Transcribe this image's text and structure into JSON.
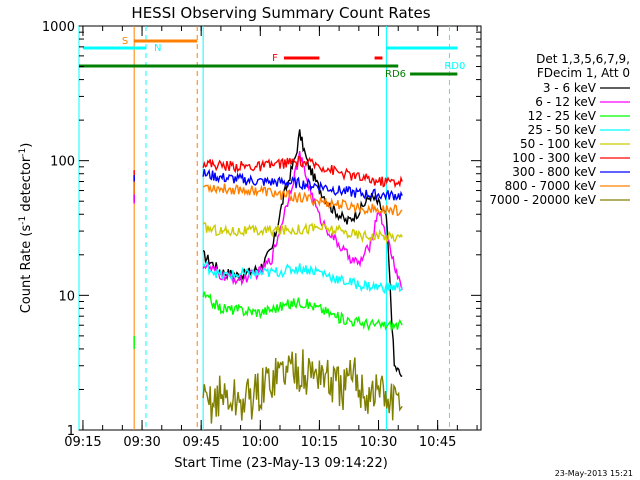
{
  "chart_data": {
    "type": "line",
    "title": "HESSI Observing Summary Count Rates",
    "xlabel": "Start Time (23-May-13 09:14:22)",
    "ylabel": "Count Rate (s⁻¹ detector⁻¹)",
    "ylabel_main": "Count Rate (s",
    "ylabel_mid": " detector",
    "ylabel_end": ")",
    "ylabel_sup": "-1",
    "y_scale": "log",
    "ylim": [
      1,
      1000
    ],
    "xlim": [
      "09:14",
      "10:56"
    ],
    "x_ticks": [
      "09:15",
      "09:30",
      "09:45",
      "10:00",
      "10:15",
      "10:30",
      "10:45"
    ],
    "y_ticks": [
      "1",
      "10",
      "100",
      "1000"
    ],
    "legend_title_1": "Det 1,3,5,6,7,9,",
    "legend_title_2": "FDecim 1, Att 0",
    "legend_position": "right",
    "footer_date": "23-May-2013 15:21",
    "series": [
      {
        "name": "3 - 6 keV",
        "color": "#000000",
        "x": [
          "09:28",
          "09:45:30",
          "09:50",
          "09:55",
          "10:00",
          "10:03",
          "10:06",
          "10:09",
          "10:10",
          "10:12",
          "10:15",
          "10:18",
          "10:22",
          "10:25",
          "10:28",
          "10:30",
          "10:32",
          "10:34",
          "10:36"
        ],
        "values": [
          62,
          20,
          15,
          14,
          16,
          22,
          55,
          110,
          160,
          95,
          62,
          45,
          35,
          42,
          55,
          48,
          38,
          3,
          2.5
        ]
      },
      {
        "name": "6 - 12 keV",
        "color": "#ff00ff",
        "x": [
          "09:28",
          "09:45:30",
          "09:50",
          "09:55",
          "10:00",
          "10:03",
          "10:06",
          "10:09",
          "10:10",
          "10:12",
          "10:15",
          "10:18",
          "10:22",
          "10:25",
          "10:28",
          "10:30",
          "10:32",
          "10:34",
          "10:36"
        ],
        "values": [
          60,
          17,
          14,
          13,
          15,
          19,
          40,
          85,
          110,
          70,
          38,
          28,
          20,
          17,
          24,
          44,
          28,
          17,
          11
        ]
      },
      {
        "name": "12 - 25 keV",
        "color": "#00ff00",
        "x": [
          "09:28",
          "09:45:30",
          "09:50",
          "10:00",
          "10:10",
          "10:15",
          "10:20",
          "10:25",
          "10:30",
          "10:36"
        ],
        "values": [
          5,
          10,
          8,
          7.5,
          9,
          8,
          6.8,
          6.3,
          6,
          6
        ]
      },
      {
        "name": "25 - 50 keV",
        "color": "#00ffff",
        "x": [
          "09:45:30",
          "09:50",
          "10:00",
          "10:05",
          "10:10",
          "10:15",
          "10:20",
          "10:25",
          "10:30",
          "10:36"
        ],
        "values": [
          17,
          14,
          14.5,
          15,
          16,
          15,
          13,
          12,
          11.5,
          11.5
        ]
      },
      {
        "name": "50 - 100 keV",
        "color": "#cccc00",
        "x": [
          "09:45:30",
          "09:50",
          "10:00",
          "10:10",
          "10:15",
          "10:20",
          "10:25",
          "10:30",
          "10:36"
        ],
        "values": [
          32,
          30,
          30,
          31,
          32,
          30,
          28,
          27.5,
          27
        ]
      },
      {
        "name": "100 - 300 keV",
        "color": "#ff0000",
        "x": [
          "09:28",
          "09:45:30",
          "09:50",
          "10:00",
          "10:05",
          "10:10",
          "10:15",
          "10:20",
          "10:25",
          "10:30",
          "10:36"
        ],
        "values": [
          85,
          97,
          92,
          90,
          95,
          98,
          92,
          82,
          75,
          70,
          70
        ]
      },
      {
        "name": "300 - 800 keV",
        "color": "#0000ff",
        "x": [
          "09:28",
          "09:45:30",
          "09:50",
          "10:00",
          "10:10",
          "10:15",
          "10:20",
          "10:25",
          "10:30",
          "10:36"
        ],
        "values": [
          78,
          80,
          75,
          70,
          68,
          65,
          60,
          57,
          56,
          55
        ]
      },
      {
        "name": "800 - 7000 keV",
        "color": "#ff8000",
        "x": [
          "09:28",
          "09:45:30",
          "09:50",
          "10:00",
          "10:05",
          "10:10",
          "10:15",
          "10:20",
          "10:25",
          "10:30",
          "10:36"
        ],
        "values": [
          70,
          65,
          62,
          60,
          56,
          53,
          50,
          47,
          45,
          43,
          43
        ]
      },
      {
        "name": "7000 - 20000 keV",
        "color": "#808000",
        "x": [
          "09:45:30",
          "09:50",
          "09:55",
          "10:00",
          "10:03",
          "10:06",
          "10:09",
          "10:12",
          "10:15",
          "10:18",
          "10:21",
          "10:24",
          "10:27",
          "10:30",
          "10:33",
          "10:36"
        ],
        "values": [
          1.5,
          1.8,
          1.6,
          1.9,
          2.5,
          2.8,
          3.0,
          2.5,
          2.8,
          2.2,
          2.0,
          2.5,
          1.8,
          2.0,
          1.6,
          1.5
        ]
      }
    ],
    "flags": [
      {
        "label": "S",
        "color": "#ff8000",
        "x_start": "09:28",
        "x_end": "09:44"
      },
      {
        "label": "N",
        "color": "#00ffff",
        "x_start": "09:15",
        "x_end": "09:31"
      },
      {
        "label": "F",
        "color": "#ff0000",
        "x_start": "10:06",
        "x_end": "10:15"
      },
      {
        "label": "",
        "color": "#ff0000",
        "x_start": "10:29",
        "x_end": "10:31"
      },
      {
        "label": "RD0",
        "color": "#00ffff",
        "x_start": "10:32",
        "x_end": "10:50"
      },
      {
        "label": "RD6",
        "color": "#008000",
        "x_start": "10:38",
        "x_end": "10:50"
      }
    ],
    "long_band": {
      "color": "#008000",
      "x_start": "09:14",
      "x_end": "10:35"
    },
    "vlines": [
      {
        "x": "09:14",
        "color": "#00ffff",
        "style": "solid"
      },
      {
        "x": "09:28",
        "color": "#ff8000",
        "style": "solid"
      },
      {
        "x": "09:31",
        "color": "#00ffff",
        "style": "dashed"
      },
      {
        "x": "09:44",
        "color": "#ff8000",
        "style": "dashed"
      },
      {
        "x": "09:45:30",
        "color": "#00ffff",
        "style": "solid"
      },
      {
        "x": "10:32",
        "color": "#00ffff",
        "style": "solid"
      },
      {
        "x": "10:48",
        "color": "#00ffff",
        "style": "dashed"
      }
    ]
  }
}
